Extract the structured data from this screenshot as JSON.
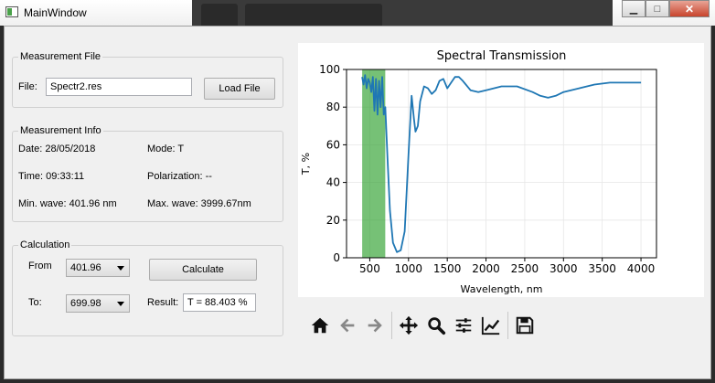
{
  "window": {
    "title": "MainWindow",
    "minimize": "▁",
    "maximize": "□",
    "close": "✕"
  },
  "measurement_file": {
    "group_title": "Measurement File",
    "file_label": "File:",
    "file_value": "Spectr2.res",
    "load_button": "Load File"
  },
  "measurement_info": {
    "group_title": "Measurement Info",
    "date": "Date: 28/05/2018",
    "mode": "Mode: T",
    "time": "Time: 09:33:11",
    "polarization": "Polarization: --",
    "min_wave": "Min. wave: 401.96 nm",
    "max_wave": "Max. wave: 3999.67nm"
  },
  "calculation": {
    "group_title": "Calculation",
    "from_label": "From",
    "from_value": "401.96",
    "to_label": "To:",
    "to_value": "699.98",
    "calculate_button": "Calculate",
    "result_label": "Result:",
    "result_value": "T = 88.403 %"
  },
  "toolbar": {
    "buttons": [
      "home-icon",
      "back-icon",
      "forward-icon",
      "pan-icon",
      "zoom-icon",
      "configure-subplots-icon",
      "edit-axis-icon",
      "save-icon"
    ]
  },
  "chart_data": {
    "type": "line",
    "title": "Spectral Transmission",
    "xlabel": "Wavelength, nm",
    "ylabel": "T, %",
    "xlim": [
      200,
      4200
    ],
    "ylim": [
      0,
      100
    ],
    "xticks": [
      500,
      1000,
      1500,
      2000,
      2500,
      3000,
      3500,
      4000
    ],
    "yticks": [
      0,
      20,
      40,
      60,
      80,
      100
    ],
    "grid": true,
    "line_color": "#1f77b4",
    "highlight": {
      "from": 401.96,
      "to": 699.98,
      "color": "#2ca02c"
    },
    "series": [
      {
        "x": [
          402,
          420,
          440,
          460,
          480,
          500,
          520,
          540,
          560,
          580,
          600,
          620,
          640,
          660,
          680,
          700,
          730,
          760,
          800,
          850,
          900,
          950,
          1000,
          1040,
          1070,
          1090,
          1120,
          1150,
          1200,
          1250,
          1300,
          1350,
          1400,
          1450,
          1500,
          1550,
          1600,
          1650,
          1700,
          1800,
          1900,
          2000,
          2200,
          2400,
          2600,
          2700,
          2800,
          2900,
          3000,
          3200,
          3400,
          3600,
          3800,
          4000
        ],
        "y": [
          96,
          92,
          97,
          90,
          95,
          93,
          88,
          96,
          78,
          95,
          76,
          94,
          80,
          96,
          76,
          80,
          52,
          25,
          8,
          3,
          4,
          14,
          55,
          86,
          74,
          67,
          70,
          83,
          91,
          90,
          87,
          89,
          94,
          95,
          90,
          93,
          96,
          96,
          94,
          89,
          88,
          89,
          91,
          91,
          88,
          86,
          85,
          86,
          88,
          90,
          92,
          93,
          93,
          93
        ]
      }
    ]
  }
}
